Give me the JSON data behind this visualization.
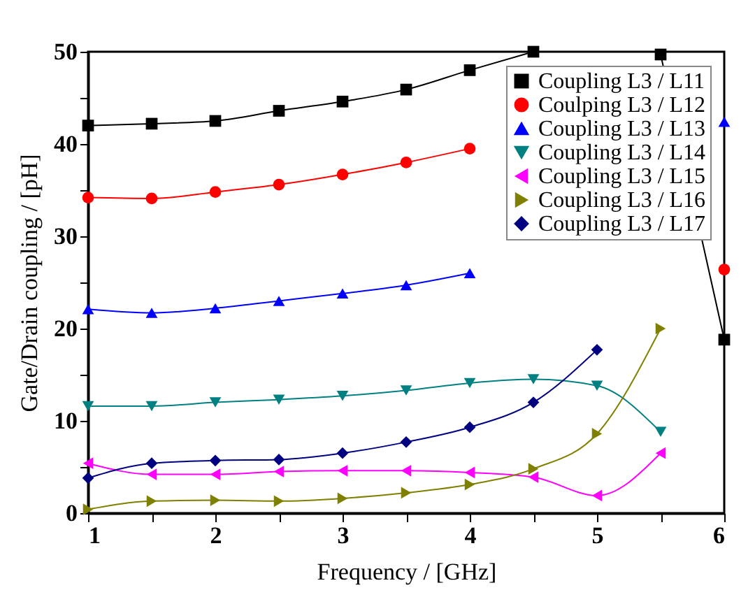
{
  "chart_data": {
    "type": "line",
    "xlabel": "Frequency / [GHz]",
    "ylabel": "Gate/Drain coupling / [pH]",
    "x": [
      1,
      1.5,
      2,
      2.5,
      3,
      3.5,
      4,
      4.5,
      5,
      5.5,
      6
    ],
    "xlim": [
      1,
      6
    ],
    "xticks": [
      1,
      {
        "value": 1.5,
        "label": null
      },
      2,
      {
        "value": 2.5,
        "label": null
      },
      3,
      {
        "value": 3.5,
        "label": null
      },
      4,
      {
        "value": 4.5,
        "label": null
      },
      5,
      {
        "value": 5.5,
        "label": null
      },
      6
    ],
    "ylim": [
      0,
      50
    ],
    "yticks": [
      0,
      {
        "value": 5,
        "label": null
      },
      10,
      {
        "value": 15,
        "label": null
      },
      20,
      {
        "value": 25,
        "label": null
      },
      30,
      {
        "value": 35,
        "label": null
      },
      40,
      {
        "value": 45,
        "label": null
      },
      50
    ],
    "grid": false,
    "legend": "top right",
    "series": [
      {
        "name": "Coupling L3 / L11",
        "color": "#000000",
        "marker": "square",
        "values": [
          42.0,
          42.2,
          42.5,
          43.6,
          44.6,
          45.9,
          48.0,
          50.0,
          null,
          49.7,
          18.8
        ]
      },
      {
        "name": "Coulping L3 / L12",
        "color": "#ff0000",
        "marker": "circle",
        "values": [
          34.2,
          34.1,
          34.8,
          35.6,
          36.7,
          38.0,
          39.5,
          null,
          null,
          null,
          26.4
        ]
      },
      {
        "name": "Coupling L3 / L13",
        "color": "#0000ff",
        "marker": "triangle-up",
        "values": [
          22.1,
          21.7,
          22.2,
          23.0,
          23.8,
          24.7,
          26.0,
          null,
          null,
          null,
          42.4
        ]
      },
      {
        "name": "Coupling L3 / L14",
        "color": "#008080",
        "marker": "triangle-down",
        "values": [
          11.6,
          11.6,
          12.0,
          12.3,
          12.7,
          13.3,
          14.1,
          14.5,
          13.8,
          8.8,
          null
        ]
      },
      {
        "name": "Coupling L3 / L15",
        "color": "#ff00ff",
        "marker": "triangle-left",
        "values": [
          5.4,
          4.2,
          4.2,
          4.5,
          4.6,
          4.6,
          4.4,
          3.9,
          1.9,
          6.5,
          null
        ]
      },
      {
        "name": "Coupling L3 / L16",
        "color": "#808000",
        "marker": "triangle-right",
        "values": [
          0.4,
          1.3,
          1.4,
          1.3,
          1.6,
          2.2,
          3.1,
          4.8,
          8.6,
          20.0,
          null
        ]
      },
      {
        "name": "Coupling L3 / L17",
        "color": "#000080",
        "marker": "diamond",
        "values": [
          3.8,
          5.4,
          5.7,
          5.8,
          6.5,
          7.7,
          9.3,
          12.0,
          17.7,
          null,
          null
        ]
      }
    ]
  }
}
